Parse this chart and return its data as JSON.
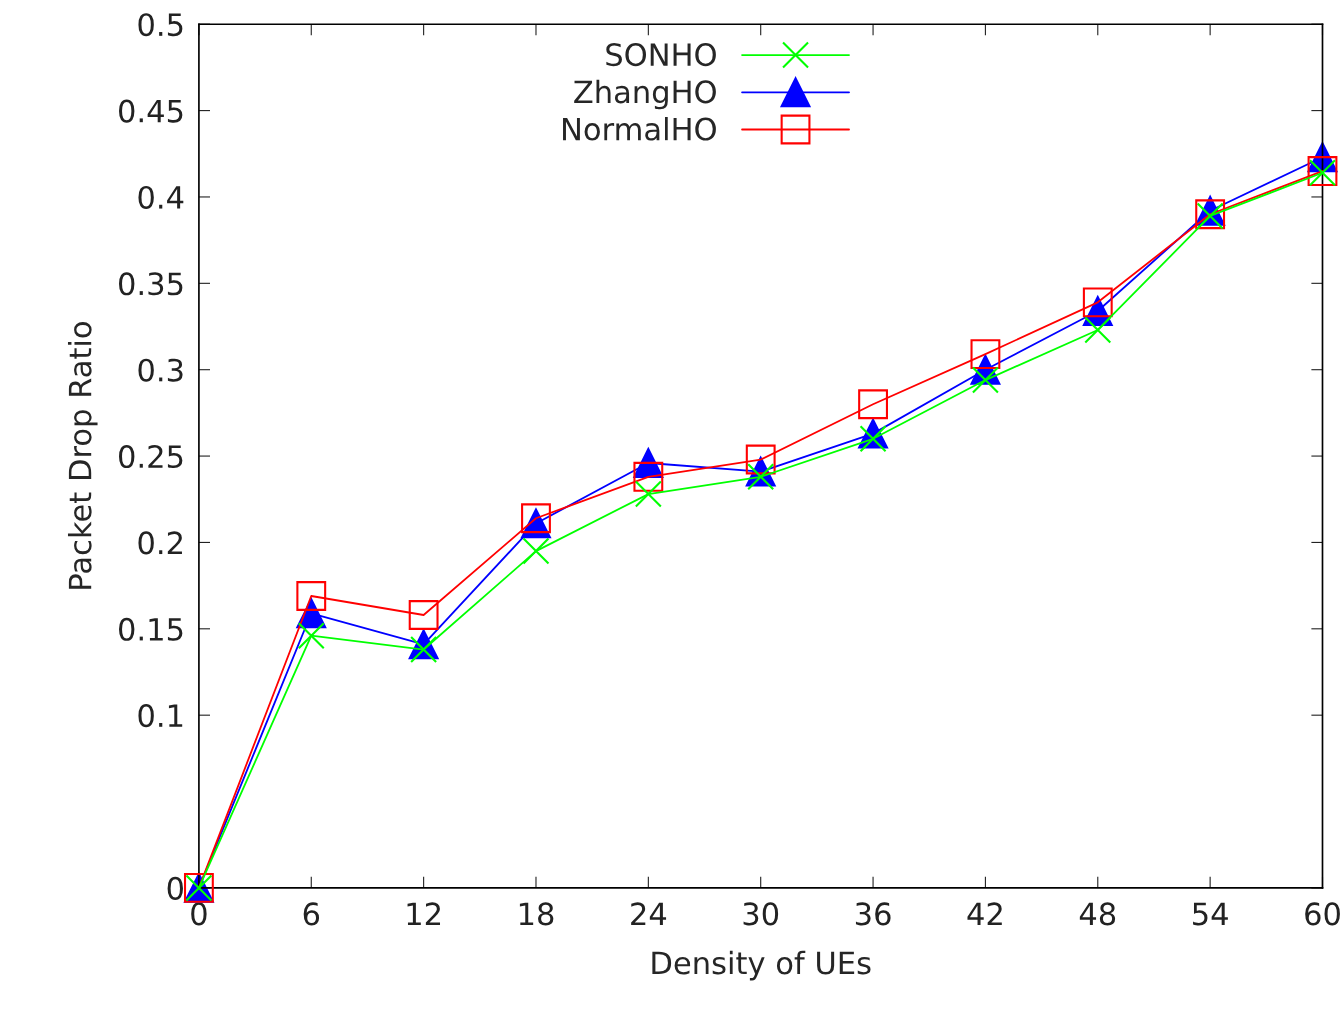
{
  "chart_data": {
    "type": "line",
    "xlabel": "Density of UEs",
    "ylabel": "Packet Drop Ratio",
    "x": [
      0,
      6,
      12,
      18,
      24,
      30,
      36,
      42,
      48,
      54,
      60
    ],
    "series": [
      {
        "name": "SONHO",
        "color": "#00ff00",
        "marker": "cross",
        "values": [
          0,
          0.146,
          0.138,
          0.195,
          0.228,
          0.238,
          0.26,
          0.294,
          0.323,
          0.389,
          0.414
        ]
      },
      {
        "name": "ZhangHO",
        "color": "#0000ff",
        "marker": "triangle",
        "values": [
          0,
          0.159,
          0.141,
          0.211,
          0.246,
          0.241,
          0.263,
          0.3,
          0.334,
          0.392,
          0.423
        ]
      },
      {
        "name": "NormalHO",
        "color": "#ff0000",
        "marker": "square",
        "values": [
          0,
          0.169,
          0.158,
          0.214,
          0.238,
          0.248,
          0.28,
          0.309,
          0.339,
          0.39,
          0.415
        ]
      }
    ],
    "xlim": [
      0,
      60
    ],
    "xticks": [
      0,
      6,
      12,
      18,
      24,
      30,
      36,
      42,
      48,
      54,
      60
    ],
    "ylim": [
      0,
      0.5
    ],
    "yticks": [
      0,
      0.1,
      0.15,
      0.2,
      0.25,
      0.3,
      0.35,
      0.4,
      0.45,
      0.5
    ],
    "legend": "top",
    "grid": false,
    "line_style": "solid"
  }
}
